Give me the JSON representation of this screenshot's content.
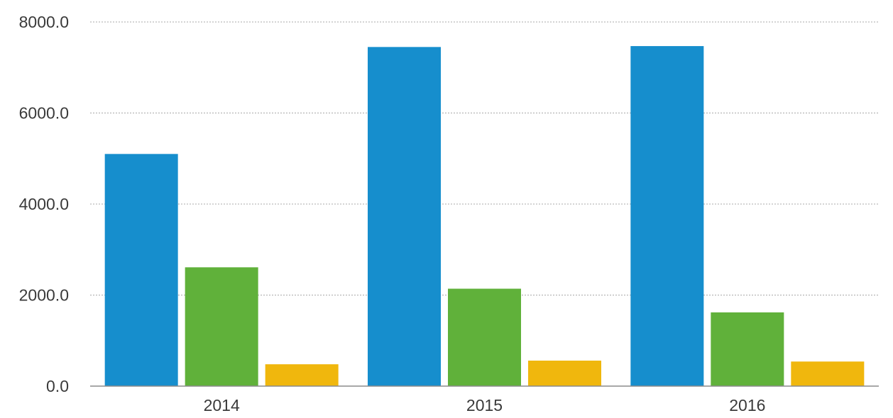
{
  "chart_data": {
    "type": "bar",
    "title": "",
    "xlabel": "",
    "ylabel": "",
    "categories": [
      "2014",
      "2015",
      "2016"
    ],
    "series": [
      {
        "values": [
          5100,
          7450,
          7470
        ],
        "color": "#168ecd"
      },
      {
        "values": [
          2610,
          2140,
          1620
        ],
        "color": "#60b13a"
      },
      {
        "values": [
          480,
          560,
          540
        ],
        "color": "#f0b70d"
      }
    ],
    "ylim": [
      0,
      8000
    ],
    "y_ticks": [
      "0.0",
      "2000.0",
      "4000.0",
      "6000.0",
      "8000.0"
    ],
    "grid": true,
    "legend": "none"
  }
}
